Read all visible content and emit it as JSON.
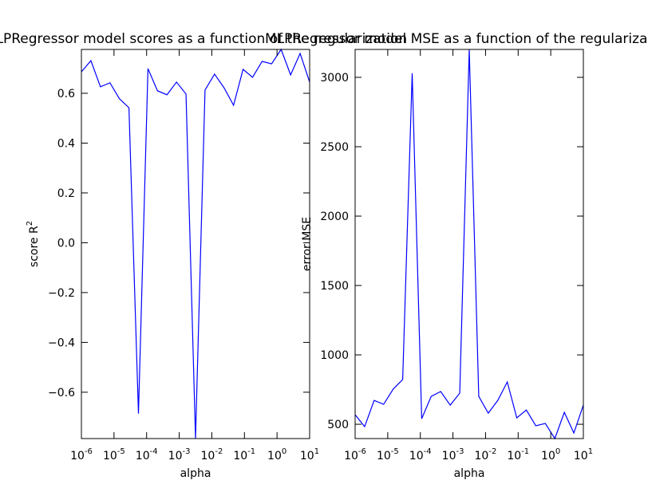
{
  "chart_data": [
    {
      "type": "line",
      "title": "MLPRegressor model scores as a function of the regularization",
      "x_label": "alpha",
      "y_label": "score R^2",
      "log_x": true,
      "x": [
        1e-06,
        1.957e-06,
        3.831e-06,
        7.499e-06,
        1.468e-05,
        2.873e-05,
        5.623e-05,
        0.0001101,
        0.0002154,
        0.0004217,
        0.0008254,
        0.001616,
        0.003162,
        0.00619,
        0.01212,
        0.02371,
        0.04642,
        0.09085,
        0.1778,
        0.3481,
        0.6813,
        1.334,
        2.61,
        5.109,
        10
      ],
      "series": [
        {
          "color": "#0000ff",
          "values": [
            0.686,
            0.731,
            0.626,
            0.642,
            0.578,
            0.542,
            -0.686,
            0.699,
            0.61,
            0.594,
            0.645,
            0.597,
            -0.786,
            0.613,
            0.677,
            0.622,
            0.552,
            0.696,
            0.664,
            0.728,
            0.718,
            0.776,
            0.674,
            0.76,
            0.645
          ]
        }
      ],
      "xlim": [
        1e-06,
        10
      ],
      "xticks": [
        {
          "value": 1e-06,
          "label": "10^-6"
        },
        {
          "value": 1e-05,
          "label": "10^-5"
        },
        {
          "value": 0.0001,
          "label": "10^-4"
        },
        {
          "value": 0.001,
          "label": "10^-3"
        },
        {
          "value": 0.01,
          "label": "10^-2"
        },
        {
          "value": 0.1,
          "label": "10^-1"
        },
        {
          "value": 1,
          "label": "10^0"
        },
        {
          "value": 10,
          "label": "10^1"
        }
      ],
      "ylim": [
        -0.786,
        0.776
      ],
      "yticks": [
        {
          "value": -0.6,
          "label": "−0.6"
        },
        {
          "value": -0.4,
          "label": "−0.4"
        },
        {
          "value": -0.2,
          "label": "−0.2"
        },
        {
          "value": 0,
          "label": "0.0"
        },
        0.2,
        0.4,
        0.6
      ]
    },
    {
      "type": "line",
      "title": "MLPRegressor model MSE as a function of the regularization",
      "x_label": "alpha",
      "y_label": "error MSE",
      "log_x": true,
      "x": [
        1e-06,
        1.957e-06,
        3.831e-06,
        7.499e-06,
        1.468e-05,
        2.873e-05,
        5.623e-05,
        0.0001101,
        0.0002154,
        0.0004217,
        0.0008254,
        0.001616,
        0.003162,
        0.00619,
        0.01212,
        0.02371,
        0.04642,
        0.09085,
        0.1778,
        0.3481,
        0.6813,
        1.334,
        2.61,
        5.109,
        10
      ],
      "series": [
        {
          "color": "#0000ff",
          "values": [
            569,
            483,
            672,
            644,
            753,
            822,
            3029,
            540,
            701,
            736,
            638,
            724,
            3201,
            701,
            580,
            672,
            805,
            546,
            603,
            489,
            506,
            397,
            586,
            437,
            638
          ]
        }
      ],
      "xlim": [
        1e-06,
        10
      ],
      "xticks": [
        {
          "value": 1e-06,
          "label": "10^-6"
        },
        {
          "value": 1e-05,
          "label": "10^-5"
        },
        {
          "value": 0.0001,
          "label": "10^-4"
        },
        {
          "value": 0.001,
          "label": "10^-3"
        },
        {
          "value": 0.01,
          "label": "10^-2"
        },
        {
          "value": 0.1,
          "label": "10^-1"
        },
        {
          "value": 1,
          "label": "10^0"
        },
        {
          "value": 10,
          "label": "10^1"
        }
      ],
      "ylim": [
        397,
        3201
      ],
      "yticks": [
        500,
        1000,
        1500,
        2000,
        2500,
        3000
      ]
    }
  ]
}
